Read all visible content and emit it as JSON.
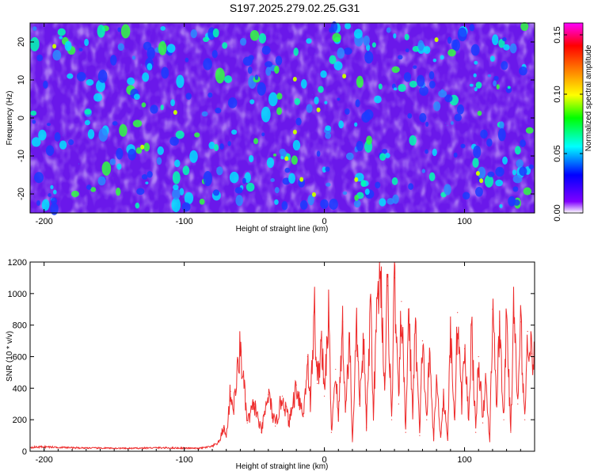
{
  "title": "S197.2025.279.02.25.G31",
  "chart_data": [
    {
      "type": "heatmap",
      "title": "S197.2025.279.02.25.G31",
      "xlabel": "Height of straight line (km)",
      "ylabel": "Frequency (Hz)",
      "xlim": [
        -210,
        150
      ],
      "ylim": [
        -25,
        25
      ],
      "xticks": [
        -200,
        -100,
        0,
        100
      ],
      "yticks": [
        -20,
        -10,
        0,
        10,
        20
      ],
      "xtick_labels": [
        "-200",
        "-100",
        "0",
        "100"
      ],
      "ytick_labels": [
        "-20",
        "-10",
        "0",
        "10",
        "20"
      ],
      "colorbar": {
        "label": "Normalized spectral amplitude",
        "range": [
          0.0,
          0.16
        ],
        "ticks": [
          0.0,
          0.05,
          0.1,
          0.15
        ],
        "tick_labels": [
          "0.00",
          "0.05",
          "0.10",
          "0.15"
        ],
        "colors": [
          "#ffffff",
          "#8000ff",
          "#0000ff",
          "#00ffff",
          "#00ff00",
          "#ffff00",
          "#ff8000",
          "#ff0000",
          "#ff00ff"
        ]
      },
      "notes": "Speckled spectral amplitude field; mostly 0.02-0.06 with sparse peaks near 0.10-0.12"
    },
    {
      "type": "line",
      "xlabel": "Height of straight line (km)",
      "ylabel": "SNR (10 * v/v)",
      "xlim": [
        -210,
        150
      ],
      "ylim": [
        0,
        1200
      ],
      "xticks": [
        -200,
        -100,
        0,
        100
      ],
      "yticks": [
        0,
        200,
        400,
        600,
        800,
        1000,
        1200
      ],
      "xtick_labels": [
        "-200",
        "-100",
        "0",
        "100"
      ],
      "ytick_labels": [
        "0",
        "200",
        "400",
        "600",
        "800",
        "1000",
        "1200"
      ],
      "series": [
        {
          "name": "SNR",
          "color": "#ee2b2b",
          "x": [
            -210,
            -200,
            -180,
            -160,
            -140,
            -120,
            -100,
            -90,
            -80,
            -75,
            -72,
            -70,
            -67,
            -65,
            -60,
            -55,
            -50,
            -45,
            -40,
            -35,
            -30,
            -25,
            -20,
            -15,
            -12,
            -10,
            -7,
            -5,
            -2,
            0,
            3,
            5,
            8,
            10,
            13,
            15,
            18,
            20,
            23,
            25,
            28,
            30,
            33,
            35,
            38,
            40,
            43,
            45,
            48,
            50,
            53,
            55,
            58,
            60,
            63,
            65,
            68,
            70,
            73,
            75,
            78,
            80,
            83,
            85,
            88,
            90,
            93,
            95,
            98,
            100,
            103,
            105,
            108,
            110,
            113,
            115,
            118,
            120,
            123,
            125,
            128,
            130,
            133,
            135,
            138,
            140,
            143,
            145,
            148,
            150
          ],
          "values": [
            25,
            28,
            22,
            20,
            18,
            22,
            20,
            18,
            30,
            60,
            150,
            90,
            380,
            260,
            660,
            180,
            300,
            120,
            360,
            160,
            350,
            180,
            420,
            220,
            600,
            300,
            880,
            430,
            720,
            350,
            880,
            120,
            520,
            200,
            820,
            250,
            750,
            60,
            800,
            300,
            700,
            150,
            950,
            250,
            1000,
            1200,
            400,
            1050,
            200,
            1100,
            300,
            950,
            120,
            900,
            250,
            800,
            100,
            700,
            200,
            600,
            80,
            450,
            90,
            350,
            80,
            750,
            200,
            880,
            300,
            650,
            200,
            800,
            120,
            600,
            180,
            450,
            60,
            900,
            300,
            820,
            200,
            860,
            120,
            880,
            300,
            820,
            200,
            760,
            620,
            560
          ]
        }
      ]
    }
  ]
}
